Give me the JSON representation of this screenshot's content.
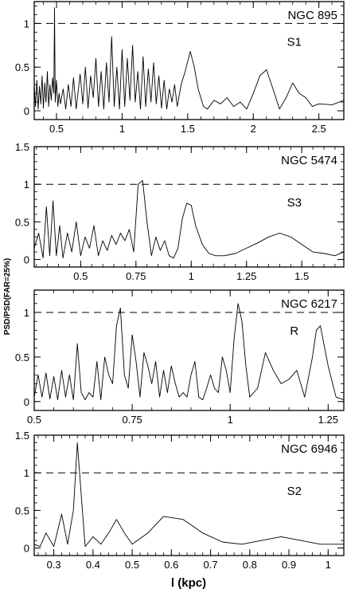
{
  "figure": {
    "ylabel": "PSD/PSD(FAR=25%)",
    "xlabel": "l (kpc)"
  },
  "chart_data": [
    {
      "type": "line",
      "galaxy": "NGC 895",
      "arm": "S1",
      "threshold": 1,
      "xlim": [
        0.33,
        2.69
      ],
      "ylim": [
        -0.1,
        1.25
      ],
      "xticks": [
        0.5,
        1,
        1.5,
        2,
        2.5
      ],
      "xtick_labels": [
        "0.5",
        "1",
        "1.5",
        "2",
        "2.5"
      ],
      "yticks": [
        0,
        0.5,
        1
      ],
      "ytick_labels": [
        "0",
        "0.5",
        "1"
      ],
      "x": [
        0.33,
        0.34,
        0.35,
        0.36,
        0.37,
        0.38,
        0.39,
        0.4,
        0.41,
        0.42,
        0.43,
        0.44,
        0.45,
        0.46,
        0.47,
        0.48,
        0.485,
        0.49,
        0.5,
        0.51,
        0.52,
        0.53,
        0.55,
        0.57,
        0.59,
        0.61,
        0.63,
        0.65,
        0.68,
        0.7,
        0.72,
        0.74,
        0.76,
        0.78,
        0.8,
        0.82,
        0.84,
        0.86,
        0.88,
        0.9,
        0.92,
        0.94,
        0.96,
        0.98,
        1.0,
        1.02,
        1.04,
        1.06,
        1.08,
        1.1,
        1.12,
        1.14,
        1.16,
        1.18,
        1.2,
        1.22,
        1.24,
        1.26,
        1.28,
        1.3,
        1.32,
        1.34,
        1.36,
        1.38,
        1.4,
        1.42,
        1.45,
        1.48,
        1.52,
        1.55,
        1.58,
        1.62,
        1.65,
        1.7,
        1.75,
        1.8,
        1.85,
        1.9,
        1.95,
        2.0,
        2.05,
        2.1,
        2.15,
        2.2,
        2.25,
        2.3,
        2.35,
        2.4,
        2.45,
        2.5,
        2.6,
        2.69
      ],
      "y": [
        0.3,
        0.05,
        0.35,
        0.02,
        0.28,
        0.08,
        0.4,
        0.03,
        0.32,
        0.1,
        0.45,
        0.05,
        0.3,
        0.12,
        0.38,
        0.2,
        1.18,
        0.1,
        0.35,
        0.05,
        0.2,
        0.08,
        0.25,
        0.02,
        0.3,
        0.05,
        0.38,
        0.02,
        0.42,
        0.08,
        0.5,
        0.03,
        0.4,
        0.15,
        0.6,
        0.05,
        0.45,
        0.02,
        0.55,
        0.1,
        0.85,
        0.05,
        0.5,
        0.02,
        0.7,
        0.05,
        0.6,
        0.12,
        0.75,
        0.1,
        0.45,
        0.02,
        0.62,
        0.05,
        0.48,
        0.1,
        0.55,
        0.08,
        0.4,
        0.03,
        0.35,
        0.02,
        0.25,
        0.1,
        0.3,
        0.05,
        0.3,
        0.45,
        0.68,
        0.5,
        0.25,
        0.05,
        0.02,
        0.12,
        0.08,
        0.15,
        0.05,
        0.1,
        0.02,
        0.2,
        0.4,
        0.47,
        0.25,
        0.02,
        0.15,
        0.32,
        0.2,
        0.15,
        0.05,
        0.08,
        0.07,
        0.12
      ]
    },
    {
      "type": "line",
      "galaxy": "NGC 5474",
      "arm": "S3",
      "threshold": 1,
      "xlim": [
        0.29,
        1.69
      ],
      "ylim": [
        -0.1,
        1.5
      ],
      "xticks": [
        0.5,
        0.75,
        1,
        1.25,
        1.5
      ],
      "xtick_labels": [
        "0.5",
        "0.75",
        "1",
        "1.25",
        "1.5"
      ],
      "yticks": [
        0,
        0.5,
        1,
        1.5
      ],
      "ytick_labels": [
        "0",
        "0.5",
        "1",
        "1.5"
      ],
      "x": [
        0.29,
        0.31,
        0.33,
        0.345,
        0.36,
        0.375,
        0.39,
        0.405,
        0.42,
        0.44,
        0.46,
        0.48,
        0.5,
        0.52,
        0.54,
        0.56,
        0.58,
        0.6,
        0.62,
        0.64,
        0.66,
        0.68,
        0.7,
        0.72,
        0.74,
        0.76,
        0.78,
        0.8,
        0.82,
        0.84,
        0.86,
        0.88,
        0.9,
        0.92,
        0.94,
        0.96,
        0.98,
        1.0,
        1.02,
        1.05,
        1.08,
        1.11,
        1.15,
        1.2,
        1.25,
        1.3,
        1.35,
        1.4,
        1.45,
        1.5,
        1.55,
        1.6,
        1.65,
        1.69
      ],
      "y": [
        0.15,
        0.35,
        0.02,
        0.7,
        0.05,
        0.78,
        0.05,
        0.45,
        0.02,
        0.35,
        0.1,
        0.5,
        0.05,
        0.3,
        0.15,
        0.45,
        0.05,
        0.25,
        0.12,
        0.32,
        0.2,
        0.35,
        0.25,
        0.4,
        0.1,
        1.0,
        1.05,
        0.5,
        0.05,
        0.3,
        0.12,
        0.25,
        0.05,
        0.02,
        0.15,
        0.55,
        0.75,
        0.72,
        0.45,
        0.2,
        0.08,
        0.05,
        0.05,
        0.08,
        0.15,
        0.22,
        0.3,
        0.35,
        0.3,
        0.2,
        0.1,
        0.08,
        0.05,
        0.1
      ]
    },
    {
      "type": "line",
      "galaxy": "NGC 6217",
      "arm": "R",
      "threshold": 1,
      "xlim": [
        0.5,
        1.29
      ],
      "ylim": [
        -0.1,
        1.25
      ],
      "xticks": [
        0.5,
        0.75,
        1,
        1.25
      ],
      "xtick_labels": [
        "0.5",
        "0.75",
        "1",
        "1.25"
      ],
      "yticks": [
        0,
        0.5,
        1
      ],
      "ytick_labels": [
        "0",
        "0.5",
        "1"
      ],
      "x": [
        0.5,
        0.51,
        0.52,
        0.53,
        0.54,
        0.55,
        0.56,
        0.57,
        0.58,
        0.59,
        0.6,
        0.61,
        0.62,
        0.63,
        0.64,
        0.65,
        0.66,
        0.67,
        0.68,
        0.69,
        0.7,
        0.71,
        0.72,
        0.73,
        0.74,
        0.75,
        0.76,
        0.77,
        0.78,
        0.79,
        0.8,
        0.81,
        0.82,
        0.83,
        0.84,
        0.85,
        0.86,
        0.87,
        0.88,
        0.89,
        0.9,
        0.91,
        0.92,
        0.93,
        0.94,
        0.95,
        0.96,
        0.97,
        0.98,
        0.99,
        1.0,
        1.01,
        1.02,
        1.03,
        1.04,
        1.05,
        1.07,
        1.09,
        1.11,
        1.13,
        1.15,
        1.17,
        1.19,
        1.21,
        1.22,
        1.23,
        1.25,
        1.27,
        1.29
      ],
      "y": [
        0.05,
        0.3,
        0.05,
        0.32,
        0.03,
        0.28,
        0.02,
        0.35,
        0.05,
        0.3,
        0.02,
        0.65,
        0.1,
        0.02,
        0.1,
        0.05,
        0.45,
        0.02,
        0.5,
        0.3,
        0.2,
        0.85,
        1.05,
        0.3,
        0.15,
        0.75,
        0.45,
        0.05,
        0.55,
        0.4,
        0.2,
        0.45,
        0.05,
        0.35,
        0.1,
        0.4,
        0.2,
        0.05,
        0.1,
        0.05,
        0.3,
        0.45,
        0.05,
        0.02,
        0.15,
        0.3,
        0.15,
        0.1,
        0.5,
        0.35,
        0.1,
        0.7,
        1.1,
        0.9,
        0.4,
        0.05,
        0.15,
        0.55,
        0.35,
        0.2,
        0.25,
        0.35,
        0.05,
        0.5,
        0.8,
        0.85,
        0.4,
        0.05,
        0.02
      ]
    },
    {
      "type": "line",
      "galaxy": "NGC 6946",
      "arm": "S2",
      "threshold": 1,
      "xlim": [
        0.25,
        1.04
      ],
      "ylim": [
        -0.1,
        1.5
      ],
      "xticks": [
        0.3,
        0.4,
        0.5,
        0.6,
        0.7,
        0.8,
        0.9,
        1
      ],
      "xtick_labels": [
        "0.3",
        "0.4",
        "0.5",
        "0.6",
        "0.7",
        "0.8",
        "0.9",
        "1"
      ],
      "yticks": [
        0,
        0.5,
        1,
        1.5
      ],
      "ytick_labels": [
        "0",
        "0.5",
        "1",
        "1.5"
      ],
      "x": [
        0.25,
        0.265,
        0.28,
        0.3,
        0.32,
        0.335,
        0.35,
        0.36,
        0.37,
        0.38,
        0.4,
        0.42,
        0.44,
        0.46,
        0.48,
        0.5,
        0.54,
        0.58,
        0.63,
        0.68,
        0.73,
        0.78,
        0.83,
        0.88,
        0.93,
        0.98,
        1.04
      ],
      "y": [
        0.05,
        0.02,
        0.2,
        0.02,
        0.45,
        0.05,
        0.5,
        1.4,
        0.7,
        0.02,
        0.15,
        0.05,
        0.2,
        0.38,
        0.2,
        0.05,
        0.2,
        0.42,
        0.38,
        0.2,
        0.08,
        0.05,
        0.1,
        0.15,
        0.1,
        0.05,
        0.05
      ]
    }
  ]
}
